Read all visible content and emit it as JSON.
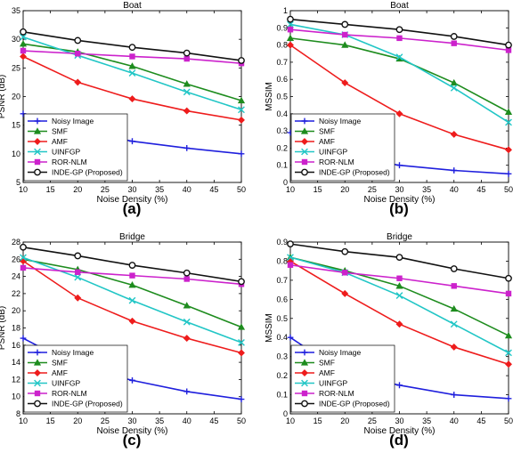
{
  "figure": {
    "panel_labels": [
      "(a)",
      "(b)",
      "(c)",
      "(d)"
    ]
  },
  "legend_style": {
    "Noisy Image": {
      "color": "#1f1fdd",
      "marker": "plus"
    },
    "SMF": {
      "color": "#1e8c1e",
      "marker": "triangle"
    },
    "AMF": {
      "color": "#ee1c1c",
      "marker": "diamond"
    },
    "UINFGP": {
      "color": "#22c6c6",
      "marker": "x"
    },
    "ROR-NLM": {
      "color": "#cc22cc",
      "marker": "square"
    },
    "INDE-GP (Proposed)": {
      "color": "#111111",
      "marker": "circle"
    }
  },
  "chart_data": [
    {
      "type": "line",
      "title": "Boat",
      "xlabel": "Noise Density (%)",
      "ylabel": "PSNR (dB)",
      "x": [
        10,
        20,
        30,
        40,
        50
      ],
      "xlim": [
        10,
        50
      ],
      "ylim": [
        5,
        35
      ],
      "xticks": [
        10,
        15,
        20,
        25,
        30,
        35,
        40,
        45,
        50
      ],
      "yticks": [
        5,
        10,
        15,
        20,
        25,
        30,
        35
      ],
      "legend_position": "bottom-left",
      "series": [
        {
          "name": "Noisy Image",
          "values": [
            17.0,
            14.0,
            12.2,
            11.0,
            10.0
          ]
        },
        {
          "name": "SMF",
          "values": [
            29.2,
            27.8,
            25.3,
            22.2,
            19.3
          ]
        },
        {
          "name": "AMF",
          "values": [
            27.0,
            22.5,
            19.6,
            17.5,
            15.9
          ]
        },
        {
          "name": "UINFGP",
          "values": [
            30.4,
            27.2,
            24.1,
            20.8,
            17.7
          ]
        },
        {
          "name": "ROR-NLM",
          "values": [
            28.0,
            27.5,
            27.0,
            26.6,
            25.8
          ]
        },
        {
          "name": "INDE-GP (Proposed)",
          "values": [
            31.3,
            29.8,
            28.6,
            27.6,
            26.3
          ]
        }
      ]
    },
    {
      "type": "line",
      "title": "Boat",
      "xlabel": "Noise Density (%)",
      "ylabel": "MSSIM",
      "x": [
        10,
        20,
        30,
        40,
        50
      ],
      "xlim": [
        10,
        50
      ],
      "ylim": [
        0,
        1
      ],
      "xticks": [
        10,
        15,
        20,
        25,
        30,
        35,
        40,
        45,
        50
      ],
      "yticks": [
        0,
        0.1,
        0.2,
        0.3,
        0.4,
        0.5,
        0.6,
        0.7,
        0.8,
        0.9,
        1
      ],
      "legend_position": "bottom-left",
      "series": [
        {
          "name": "Noisy Image",
          "values": [
            0.29,
            0.15,
            0.1,
            0.07,
            0.05
          ]
        },
        {
          "name": "SMF",
          "values": [
            0.84,
            0.8,
            0.72,
            0.58,
            0.41
          ]
        },
        {
          "name": "AMF",
          "values": [
            0.8,
            0.58,
            0.4,
            0.28,
            0.19
          ]
        },
        {
          "name": "UINFGP",
          "values": [
            0.92,
            0.86,
            0.73,
            0.55,
            0.35
          ]
        },
        {
          "name": "ROR-NLM",
          "values": [
            0.89,
            0.86,
            0.84,
            0.81,
            0.77
          ]
        },
        {
          "name": "INDE-GP (Proposed)",
          "values": [
            0.95,
            0.92,
            0.89,
            0.85,
            0.8
          ]
        }
      ]
    },
    {
      "type": "line",
      "title": "Bridge",
      "xlabel": "Noise Density (%)",
      "ylabel": "PSNR (dB)",
      "x": [
        10,
        20,
        30,
        40,
        50
      ],
      "xlim": [
        10,
        50
      ],
      "ylim": [
        8,
        28
      ],
      "xticks": [
        10,
        15,
        20,
        25,
        30,
        35,
        40,
        45,
        50
      ],
      "yticks": [
        8,
        10,
        12,
        14,
        16,
        18,
        20,
        22,
        24,
        26,
        28
      ],
      "legend_position": "bottom-left",
      "series": [
        {
          "name": "Noisy Image",
          "values": [
            16.8,
            13.5,
            11.9,
            10.6,
            9.7
          ]
        },
        {
          "name": "SMF",
          "values": [
            26.0,
            24.8,
            23.0,
            20.6,
            18.1
          ]
        },
        {
          "name": "AMF",
          "values": [
            25.8,
            21.5,
            18.8,
            16.8,
            15.1
          ]
        },
        {
          "name": "UINFGP",
          "values": [
            26.2,
            23.9,
            21.2,
            18.7,
            16.3
          ]
        },
        {
          "name": "ROR-NLM",
          "values": [
            25.0,
            24.5,
            24.1,
            23.7,
            23.1
          ]
        },
        {
          "name": "INDE-GP (Proposed)",
          "values": [
            27.4,
            26.4,
            25.3,
            24.4,
            23.4
          ]
        }
      ]
    },
    {
      "type": "line",
      "title": "Bridge",
      "xlabel": "Noise Density (%)",
      "ylabel": "MSSIM",
      "x": [
        10,
        20,
        30,
        40,
        50
      ],
      "xlim": [
        10,
        50
      ],
      "ylim": [
        0,
        0.9
      ],
      "xticks": [
        10,
        15,
        20,
        25,
        30,
        35,
        40,
        45,
        50
      ],
      "yticks": [
        0,
        0.1,
        0.2,
        0.3,
        0.4,
        0.5,
        0.6,
        0.7,
        0.8,
        0.9
      ],
      "legend_position": "bottom-left",
      "series": [
        {
          "name": "Noisy Image",
          "values": [
            0.4,
            0.21,
            0.15,
            0.1,
            0.08
          ]
        },
        {
          "name": "SMF",
          "values": [
            0.82,
            0.75,
            0.67,
            0.55,
            0.41
          ]
        },
        {
          "name": "AMF",
          "values": [
            0.8,
            0.63,
            0.47,
            0.35,
            0.26
          ]
        },
        {
          "name": "UINFGP",
          "values": [
            0.82,
            0.74,
            0.62,
            0.47,
            0.32
          ]
        },
        {
          "name": "ROR-NLM",
          "values": [
            0.78,
            0.74,
            0.71,
            0.67,
            0.63
          ]
        },
        {
          "name": "INDE-GP (Proposed)",
          "values": [
            0.89,
            0.85,
            0.82,
            0.76,
            0.71
          ]
        }
      ]
    }
  ]
}
